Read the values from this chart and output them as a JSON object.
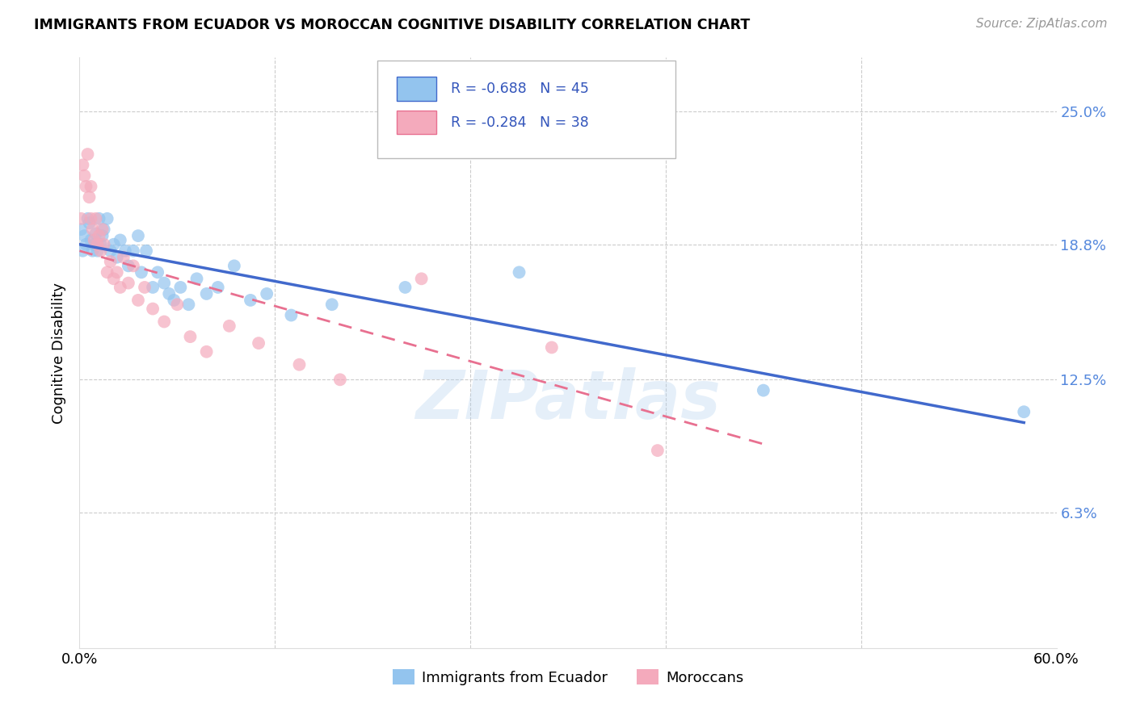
{
  "title": "IMMIGRANTS FROM ECUADOR VS MOROCCAN COGNITIVE DISABILITY CORRELATION CHART",
  "source": "Source: ZipAtlas.com",
  "ylabel": "Cognitive Disability",
  "ytick_labels": [
    "25.0%",
    "18.8%",
    "12.5%",
    "6.3%"
  ],
  "ytick_values": [
    0.25,
    0.188,
    0.125,
    0.063
  ],
  "xmin": 0.0,
  "xmax": 0.6,
  "ymin": 0.0,
  "ymax": 0.275,
  "color_ecuador": "#93C4EE",
  "color_moroccan": "#F4AABC",
  "color_ecuador_line": "#4169CC",
  "color_moroccan_line": "#E87090",
  "watermark": "ZIPatlas",
  "ecuador_x": [
    0.001,
    0.002,
    0.003,
    0.004,
    0.005,
    0.006,
    0.007,
    0.008,
    0.009,
    0.01,
    0.011,
    0.012,
    0.013,
    0.014,
    0.015,
    0.017,
    0.019,
    0.021,
    0.023,
    0.025,
    0.028,
    0.03,
    0.033,
    0.036,
    0.038,
    0.041,
    0.045,
    0.048,
    0.052,
    0.055,
    0.058,
    0.062,
    0.067,
    0.072,
    0.078,
    0.085,
    0.095,
    0.105,
    0.115,
    0.13,
    0.155,
    0.2,
    0.27,
    0.42,
    0.58
  ],
  "ecuador_y": [
    0.195,
    0.185,
    0.192,
    0.188,
    0.2,
    0.198,
    0.19,
    0.185,
    0.188,
    0.193,
    0.185,
    0.2,
    0.188,
    0.192,
    0.195,
    0.2,
    0.185,
    0.188,
    0.182,
    0.19,
    0.185,
    0.178,
    0.185,
    0.192,
    0.175,
    0.185,
    0.168,
    0.175,
    0.17,
    0.165,
    0.162,
    0.168,
    0.16,
    0.172,
    0.165,
    0.168,
    0.178,
    0.162,
    0.165,
    0.155,
    0.16,
    0.168,
    0.175,
    0.12,
    0.11
  ],
  "moroccan_x": [
    0.001,
    0.002,
    0.003,
    0.004,
    0.005,
    0.006,
    0.007,
    0.007,
    0.008,
    0.009,
    0.01,
    0.011,
    0.012,
    0.013,
    0.014,
    0.015,
    0.017,
    0.019,
    0.021,
    0.023,
    0.025,
    0.027,
    0.03,
    0.033,
    0.036,
    0.04,
    0.045,
    0.052,
    0.06,
    0.068,
    0.078,
    0.092,
    0.11,
    0.135,
    0.16,
    0.21,
    0.29,
    0.355
  ],
  "moroccan_y": [
    0.2,
    0.225,
    0.22,
    0.215,
    0.23,
    0.21,
    0.2,
    0.215,
    0.195,
    0.19,
    0.2,
    0.188,
    0.192,
    0.185,
    0.195,
    0.188,
    0.175,
    0.18,
    0.172,
    0.175,
    0.168,
    0.182,
    0.17,
    0.178,
    0.162,
    0.168,
    0.158,
    0.152,
    0.16,
    0.145,
    0.138,
    0.15,
    0.142,
    0.132,
    0.125,
    0.172,
    0.14,
    0.092
  ]
}
